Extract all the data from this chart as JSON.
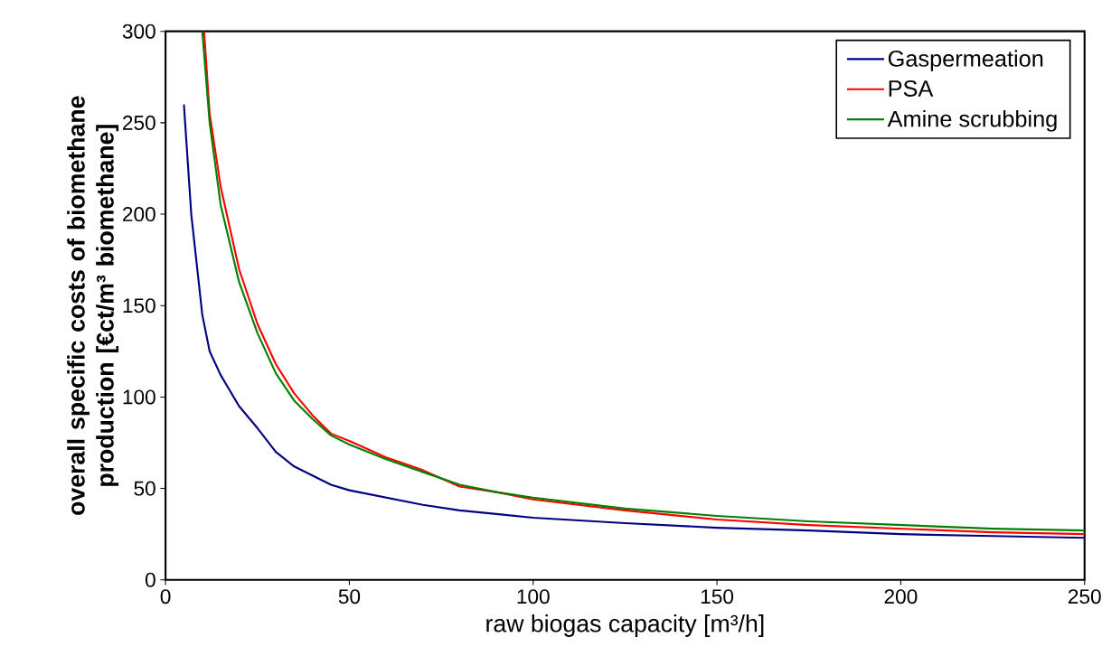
{
  "chart_data": {
    "type": "line",
    "xlabel": "raw biogas capacity [m³/h]",
    "ylabel": "overall specific costs of biomethane production [€ct/m³ biomethane]",
    "xlim": [
      0,
      250
    ],
    "ylim": [
      0,
      300
    ],
    "xticks": [
      0,
      50,
      100,
      150,
      200,
      250
    ],
    "yticks": [
      0,
      50,
      100,
      150,
      200,
      250,
      300
    ],
    "grid": false,
    "legend": "top right",
    "marker": "none",
    "line_style": "solid",
    "series": [
      {
        "name": "Gaspermeation",
        "color": "#000080",
        "x": [
          5,
          7,
          10,
          12,
          15,
          20,
          25,
          30,
          35,
          40,
          45,
          50,
          60,
          70,
          80,
          90,
          100,
          125,
          150,
          175,
          200,
          225,
          250
        ],
        "values": [
          260,
          200,
          145,
          125,
          112,
          95,
          83,
          70,
          62,
          57,
          52,
          49,
          45,
          41,
          38,
          36,
          34,
          31,
          28.5,
          27,
          25,
          24,
          23
        ]
      },
      {
        "name": "PSA",
        "color": "#ff0000",
        "x": [
          10.5,
          12,
          15,
          20,
          25,
          30,
          35,
          40,
          45,
          50,
          60,
          70,
          80,
          90,
          100,
          125,
          150,
          175,
          200,
          225,
          250
        ],
        "values": [
          300,
          255,
          215,
          170,
          140,
          118,
          102,
          90,
          80,
          76,
          67,
          60,
          51,
          48,
          44,
          38,
          33,
          30,
          28,
          26,
          25
        ]
      },
      {
        "name": "Amine scrubbing",
        "color": "#008000",
        "x": [
          10,
          12,
          15,
          20,
          25,
          30,
          35,
          40,
          45,
          50,
          60,
          70,
          80,
          90,
          100,
          125,
          150,
          175,
          200,
          225,
          250
        ],
        "values": [
          300,
          250,
          205,
          163,
          135,
          113,
          98,
          88,
          79,
          74,
          66,
          59,
          52,
          48,
          45,
          39,
          35,
          32,
          30,
          28,
          27
        ]
      }
    ]
  }
}
